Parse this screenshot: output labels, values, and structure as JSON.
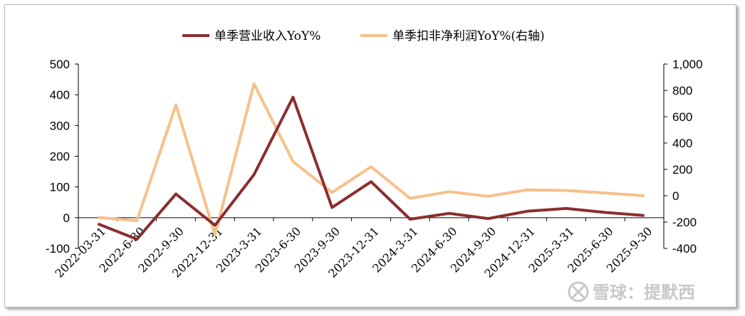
{
  "chart_data": {
    "type": "line",
    "categories": [
      "2022-03-31",
      "2022-6-30",
      "2022-9-30",
      "2022-12-31",
      "2023-3-31",
      "2023-6-30",
      "2023-9-30",
      "2023-12-31",
      "2024-3-31",
      "2024-6-30",
      "2024-9-30",
      "2024-12-31",
      "2025-3-31",
      "2025-6-30",
      "2025-9-30"
    ],
    "series": [
      {
        "name": "单季营业收入YoY%",
        "axis": "left",
        "color": "#8b2e2e",
        "values": [
          -20,
          -70,
          77,
          -25,
          140,
          392,
          33,
          117,
          -5,
          14,
          -3,
          21,
          30,
          17,
          7
        ]
      },
      {
        "name": "单季扣非净利润YoY%(右轴)",
        "axis": "right",
        "color": "#f8c08a",
        "values": [
          -165,
          -190,
          690,
          -300,
          850,
          260,
          25,
          220,
          -20,
          30,
          -5,
          45,
          40,
          20,
          0
        ]
      }
    ],
    "y_left": {
      "min": -100,
      "max": 500,
      "ticks": [
        "-100",
        "0",
        "100",
        "200",
        "300",
        "400",
        "500"
      ]
    },
    "y_right": {
      "min": -400,
      "max": 1000,
      "ticks": [
        "-400",
        "-200",
        "0",
        "200",
        "400",
        "600",
        "800",
        "1,000"
      ]
    },
    "legend_position": "top-center",
    "grid": false
  },
  "watermark": {
    "text": "雪球：提默西",
    "icon": "snowball-logo-icon"
  }
}
